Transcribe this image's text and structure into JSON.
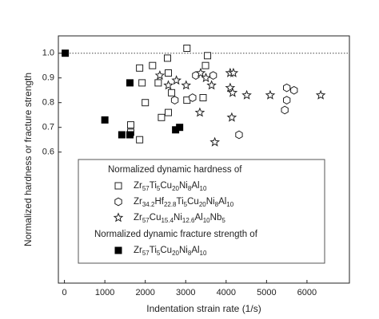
{
  "chart_data": {
    "type": "scatter",
    "x_label": "Indentation strain rate (1/s)",
    "y_label": "Normalized hardness or fracture strength",
    "xlim": [
      -150,
      7050
    ],
    "ylim": [
      0.07,
      1.07
    ],
    "xticks": [
      0,
      1000,
      2000,
      3000,
      4000,
      5000,
      6000
    ],
    "yticks": [
      {
        "value": 0.6,
        "label": "0.6"
      },
      {
        "value": 0.7,
        "label": "0.7"
      },
      {
        "value": 0.8,
        "label": "0.8"
      },
      {
        "value": 0.9,
        "label": "0.9"
      },
      {
        "value": 1.0,
        "label": "1.0"
      }
    ],
    "hline": 1.0,
    "legend_headings": [
      "Normalized dynamic hardness of",
      "Normalized dynamic fracture strength of"
    ],
    "series": [
      {
        "name": "Zr57Ti5Cu20Ni8Al10",
        "color": "#222222",
        "marker": "square-open",
        "x": [
          1860,
          1920,
          2180,
          2550,
          3030,
          3540,
          3490,
          2570,
          2320,
          2000,
          2650,
          3030,
          3430,
          2400,
          2570,
          1640,
          1860,
          1640
        ],
        "values": [
          0.94,
          0.88,
          0.95,
          0.98,
          1.02,
          0.99,
          0.95,
          0.92,
          0.88,
          0.8,
          0.84,
          0.81,
          0.82,
          0.74,
          0.76,
          0.71,
          0.65,
          0.68
        ]
      },
      {
        "name": "Zr34.2Hf22.8Ti5Cu20Ni8Al10",
        "color": "#222222",
        "marker": "hexagon-open",
        "x": [
          3250,
          3170,
          2730,
          3680,
          4320,
          5500,
          5680,
          5450,
          5500
        ],
        "values": [
          0.91,
          0.82,
          0.81,
          0.91,
          0.67,
          0.86,
          0.85,
          0.77,
          0.81
        ]
      },
      {
        "name": "Zr57Cu15.4Ni12.6Al10Nb5",
        "color": "#222222",
        "marker": "star-open",
        "x": [
          2360,
          2570,
          2770,
          3010,
          3370,
          3500,
          3640,
          4100,
          4180,
          4100,
          4160,
          4510,
          5090,
          4140,
          3350,
          3720,
          6340
        ],
        "values": [
          0.91,
          0.87,
          0.89,
          0.87,
          0.92,
          0.9,
          0.87,
          0.92,
          0.92,
          0.86,
          0.84,
          0.83,
          0.83,
          0.74,
          0.76,
          0.64,
          0.83
        ]
      },
      {
        "name": "Zr57Ti5Cu20Ni8Al10",
        "color": "#000000",
        "marker": "square-filled",
        "x": [
          20,
          1620,
          1000,
          1420,
          1620,
          2750,
          2850
        ],
        "values": [
          1.0,
          0.88,
          0.73,
          0.67,
          0.67,
          0.69,
          0.7
        ]
      }
    ]
  }
}
